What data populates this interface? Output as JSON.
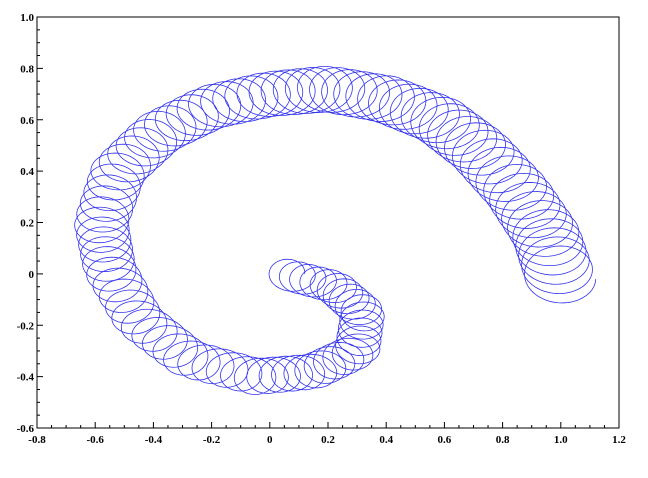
{
  "chart_data": {
    "type": "line",
    "title": "",
    "xlabel": "",
    "ylabel": "",
    "xlim": [
      -0.8,
      1.2
    ],
    "ylim": [
      -0.6,
      1.0
    ],
    "xticks": [
      -0.8,
      -0.6,
      -0.4,
      -0.2,
      0,
      0.2,
      0.4,
      0.6,
      0.8,
      1.0,
      1.2
    ],
    "yticks": [
      -0.6,
      -0.4,
      -0.2,
      0,
      0.2,
      0.4,
      0.6,
      0.8,
      1.0
    ],
    "xtick_labels": [
      "-0.8",
      "-0.6",
      "-0.4",
      "-0.2",
      "0",
      "0.2",
      "0.4",
      "0.6",
      "0.8",
      "1.0",
      "1.2"
    ],
    "ytick_labels": [
      "-0.6",
      "-0.4",
      "-0.2",
      "0",
      "0.2",
      "0.4",
      "0.6",
      "0.8",
      "1.0"
    ],
    "grid": false,
    "legend": "none",
    "line_color": "#3333ee",
    "series": [
      {
        "description_of_shape": "",
        "x": [
          0.05,
          0.22,
          0.32,
          0.3,
          0.15,
          -0.05,
          -0.28,
          -0.45,
          -0.55,
          -0.58,
          -0.52,
          -0.38,
          -0.2,
          0.0,
          0.2,
          0.4,
          0.58,
          0.72,
          0.85,
          0.95,
          1.0
        ],
        "y": [
          0.0,
          -0.05,
          -0.15,
          -0.3,
          -0.38,
          -0.4,
          -0.33,
          -0.18,
          0.02,
          0.2,
          0.4,
          0.55,
          0.65,
          0.7,
          0.72,
          0.68,
          0.6,
          0.48,
          0.32,
          0.15,
          -0.02
        ]
      }
    ]
  }
}
